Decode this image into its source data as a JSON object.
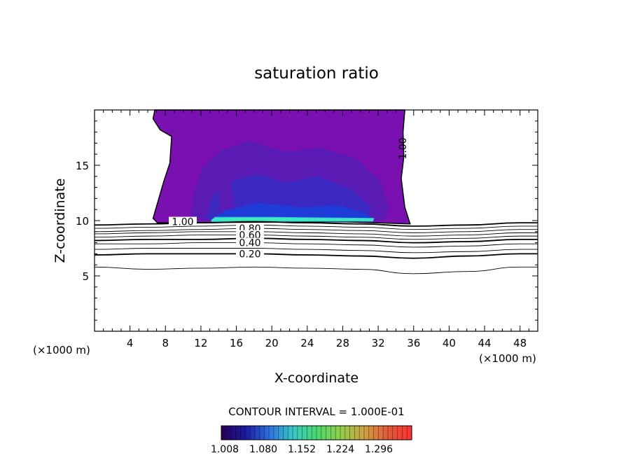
{
  "chart_data": {
    "type": "contour",
    "title": "saturation ratio",
    "xlabel": "X-coordinate",
    "ylabel": "Z-coordinate",
    "x_unit_left": "(×1000 m)",
    "x_unit_right": "(×1000 m)",
    "xlim": [
      0,
      50
    ],
    "ylim": [
      0,
      20
    ],
    "xticks": [
      4,
      8,
      12,
      16,
      20,
      24,
      28,
      32,
      36,
      40,
      44,
      48
    ],
    "yticks": [
      5,
      10,
      15
    ],
    "contour_interval_text": "CONTOUR INTERVAL = 1.000E-01",
    "colorbar": {
      "labels": [
        "1.008",
        "1.080",
        "1.152",
        "1.224",
        "1.296"
      ],
      "colors": [
        "#2a0055",
        "#1a1aa0",
        "#2f6fe0",
        "#38c8c8",
        "#4ad870",
        "#8fd04a",
        "#d0a040",
        "#e05a3a",
        "#ff3030"
      ]
    },
    "fill_colors": {
      "base": "#7a10b0",
      "mid": "#5a1ab4",
      "deep": "#3a28c0",
      "core": "#1f3cd8",
      "peak": "#40e8c0"
    },
    "line_contours": [
      {
        "level": "1.00",
        "label_text": "1.00",
        "x": [
          0,
          6,
          12,
          18,
          24,
          30,
          36,
          42,
          48,
          50
        ],
        "z": [
          9.6,
          9.7,
          9.8,
          9.9,
          9.8,
          9.7,
          9.5,
          9.6,
          9.8,
          9.8
        ]
      },
      {
        "level": "0.90",
        "label_text": "",
        "x": [
          0,
          6,
          12,
          18,
          24,
          30,
          36,
          42,
          48,
          50
        ],
        "z": [
          9.3,
          9.4,
          9.5,
          9.6,
          9.5,
          9.4,
          9.2,
          9.3,
          9.5,
          9.5
        ]
      },
      {
        "level": "0.80",
        "label_text": "0.80",
        "x": [
          0,
          6,
          12,
          18,
          24,
          30,
          36,
          42,
          48,
          50
        ],
        "z": [
          9.0,
          9.1,
          9.2,
          9.3,
          9.2,
          9.1,
          8.9,
          9.0,
          9.2,
          9.2
        ]
      },
      {
        "level": "0.70",
        "label_text": "",
        "x": [
          0,
          6,
          12,
          18,
          24,
          30,
          36,
          42,
          48,
          50
        ],
        "z": [
          8.8,
          8.9,
          9.0,
          9.0,
          8.9,
          8.8,
          8.6,
          8.7,
          8.9,
          8.9
        ]
      },
      {
        "level": "0.60",
        "label_text": "0.60",
        "x": [
          0,
          6,
          12,
          18,
          24,
          30,
          36,
          42,
          48,
          50
        ],
        "z": [
          8.5,
          8.6,
          8.7,
          8.7,
          8.6,
          8.5,
          8.3,
          8.4,
          8.6,
          8.6
        ]
      },
      {
        "level": "0.50",
        "label_text": "",
        "x": [
          0,
          6,
          12,
          18,
          24,
          30,
          36,
          42,
          48,
          50
        ],
        "z": [
          8.2,
          8.3,
          8.3,
          8.4,
          8.3,
          8.2,
          8.0,
          8.1,
          8.3,
          8.3
        ]
      },
      {
        "level": "0.40",
        "label_text": "0.40",
        "x": [
          0,
          6,
          12,
          18,
          24,
          30,
          36,
          42,
          48,
          50
        ],
        "z": [
          7.9,
          7.9,
          8.0,
          8.0,
          7.9,
          7.8,
          7.6,
          7.7,
          7.9,
          7.9
        ]
      },
      {
        "level": "0.30",
        "label_text": "",
        "x": [
          0,
          6,
          12,
          18,
          24,
          30,
          36,
          42,
          48,
          50
        ],
        "z": [
          7.4,
          7.5,
          7.5,
          7.5,
          7.4,
          7.3,
          7.1,
          7.2,
          7.4,
          7.4
        ]
      },
      {
        "level": "0.20",
        "label_text": "0.20",
        "x": [
          0,
          6,
          12,
          18,
          24,
          30,
          36,
          42,
          48,
          50
        ],
        "z": [
          6.9,
          7.0,
          7.0,
          7.0,
          6.9,
          6.8,
          6.6,
          6.8,
          7.0,
          7.0
        ]
      },
      {
        "level": "0.10",
        "label_text": "",
        "x": [
          0,
          6,
          12,
          18,
          24,
          30,
          36,
          42,
          48,
          50
        ],
        "z": [
          5.8,
          5.6,
          5.7,
          5.8,
          5.7,
          5.6,
          5.2,
          5.4,
          5.8,
          5.8
        ]
      }
    ],
    "cloud_label": "1.00"
  }
}
